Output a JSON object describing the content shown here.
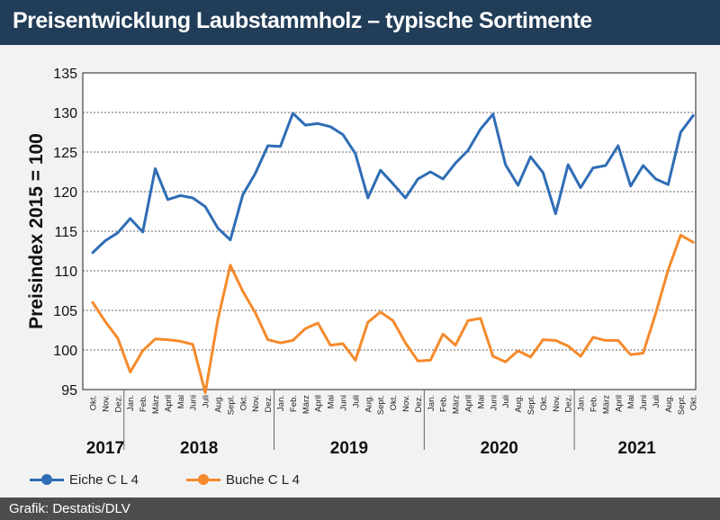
{
  "header": {
    "title": "Preisentwicklung Laubstammholz – typische Sortimente"
  },
  "footer": {
    "source": "Grafik: Destatis/DLV"
  },
  "colors": {
    "eiche": "#2f6db5",
    "buche": "#f58a2c",
    "title_bg": "#223d58",
    "footer_bg": "#4d4d4d"
  },
  "chart_data": {
    "type": "line",
    "ylabel": "Preisindex 2015 = 100",
    "ylim": [
      95,
      135
    ],
    "yticks": [
      95,
      100,
      105,
      110,
      115,
      120,
      125,
      130,
      135
    ],
    "grid": true,
    "legend_position": "bottom-left",
    "x": [
      "Okt.",
      "Nov.",
      "Dez.",
      "Jan.",
      "Feb.",
      "März",
      "April",
      "Mai",
      "Juni",
      "Juli",
      "Aug.",
      "Sept.",
      "Okt.",
      "Nov.",
      "Dez.",
      "Jan.",
      "Feb.",
      "März",
      "April",
      "Mai",
      "Juni",
      "Juli",
      "Aug.",
      "Sept.",
      "Okt.",
      "Nov.",
      "Dez.",
      "Jan.",
      "Feb.",
      "März",
      "April",
      "Mai",
      "Juni",
      "Juli",
      "Aug.",
      "Sept.",
      "Okt.",
      "Nov.",
      "Dez.",
      "Jan.",
      "Feb.",
      "März",
      "April",
      "Mai",
      "Juni",
      "Juli",
      "Aug.",
      "Sept.",
      "Okt."
    ],
    "years": [
      {
        "label": "2017",
        "start": 0,
        "end": 2
      },
      {
        "label": "2018",
        "start": 3,
        "end": 14
      },
      {
        "label": "2019",
        "start": 15,
        "end": 26
      },
      {
        "label": "2020",
        "start": 27,
        "end": 38
      },
      {
        "label": "2021",
        "start": 39,
        "end": 48
      }
    ],
    "series": [
      {
        "name": "Eiche C L 4",
        "color": "#2f6db5",
        "values": [
          112.3,
          113.8,
          114.8,
          116.6,
          114.9,
          122.9,
          119.0,
          119.5,
          119.2,
          118.1,
          115.4,
          113.9,
          119.6,
          122.3,
          125.8,
          125.7,
          129.9,
          128.4,
          128.6,
          128.2,
          127.2,
          124.8,
          119.2,
          122.7,
          121.0,
          119.2,
          121.6,
          122.5,
          121.6,
          123.6,
          125.2,
          127.9,
          129.8,
          123.4,
          120.8,
          124.4,
          122.4,
          117.2,
          123.4,
          120.5,
          123.0,
          123.3,
          125.8,
          120.7,
          123.3,
          121.6,
          120.9,
          127.5,
          129.6
        ]
      },
      {
        "name": "Buche C L 4",
        "color": "#f58a2c",
        "values": [
          106.0,
          103.6,
          101.5,
          97.2,
          99.9,
          101.4,
          101.3,
          101.1,
          100.7,
          94.6,
          103.8,
          110.7,
          107.4,
          104.7,
          101.3,
          100.9,
          101.2,
          102.7,
          103.4,
          100.6,
          100.8,
          98.7,
          103.5,
          104.8,
          103.7,
          100.9,
          98.6,
          98.7,
          102.0,
          100.6,
          103.7,
          104.0,
          99.2,
          98.5,
          99.9,
          99.1,
          101.3,
          101.2,
          100.5,
          99.2,
          101.6,
          101.2,
          101.2,
          99.4,
          99.6,
          104.6,
          110.1,
          114.5,
          113.6
        ]
      }
    ]
  }
}
